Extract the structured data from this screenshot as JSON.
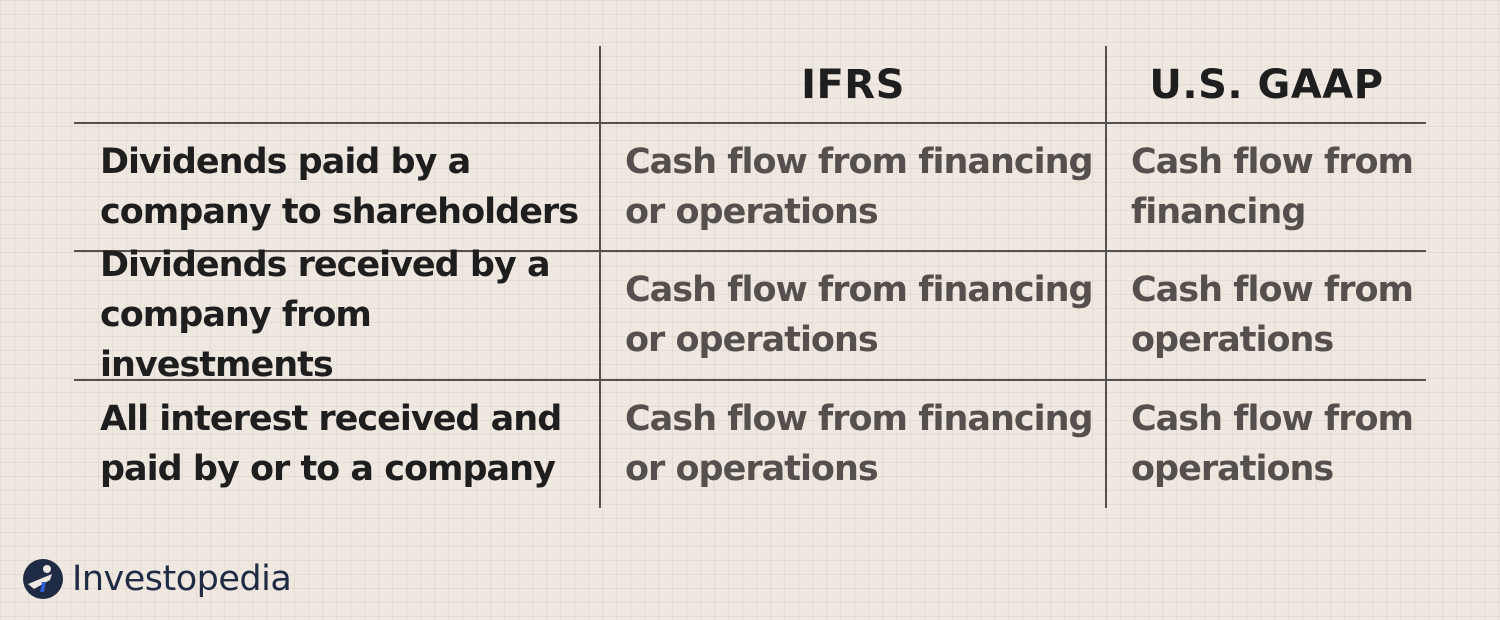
{
  "table": {
    "columns": [
      "IFRS",
      "U.S. GAAP"
    ],
    "rows": [
      {
        "label": "Dividends paid by a\ncompany to shareholders",
        "ifrs": "Cash flow from financing\nor operations",
        "gaap": "Cash flow from\nfinancing"
      },
      {
        "label": "Dividends received by a\ncompany from investments",
        "ifrs": "Cash flow from financing\nor operations",
        "gaap": "Cash flow from\noperations"
      },
      {
        "label": "All interest received and\npaid by or to a company",
        "ifrs": "Cash flow from financing\nor operations",
        "gaap": "Cash flow from\noperations"
      }
    ]
  },
  "logo": {
    "text": "Investopedia",
    "icon": "investopedia-logo-icon"
  }
}
